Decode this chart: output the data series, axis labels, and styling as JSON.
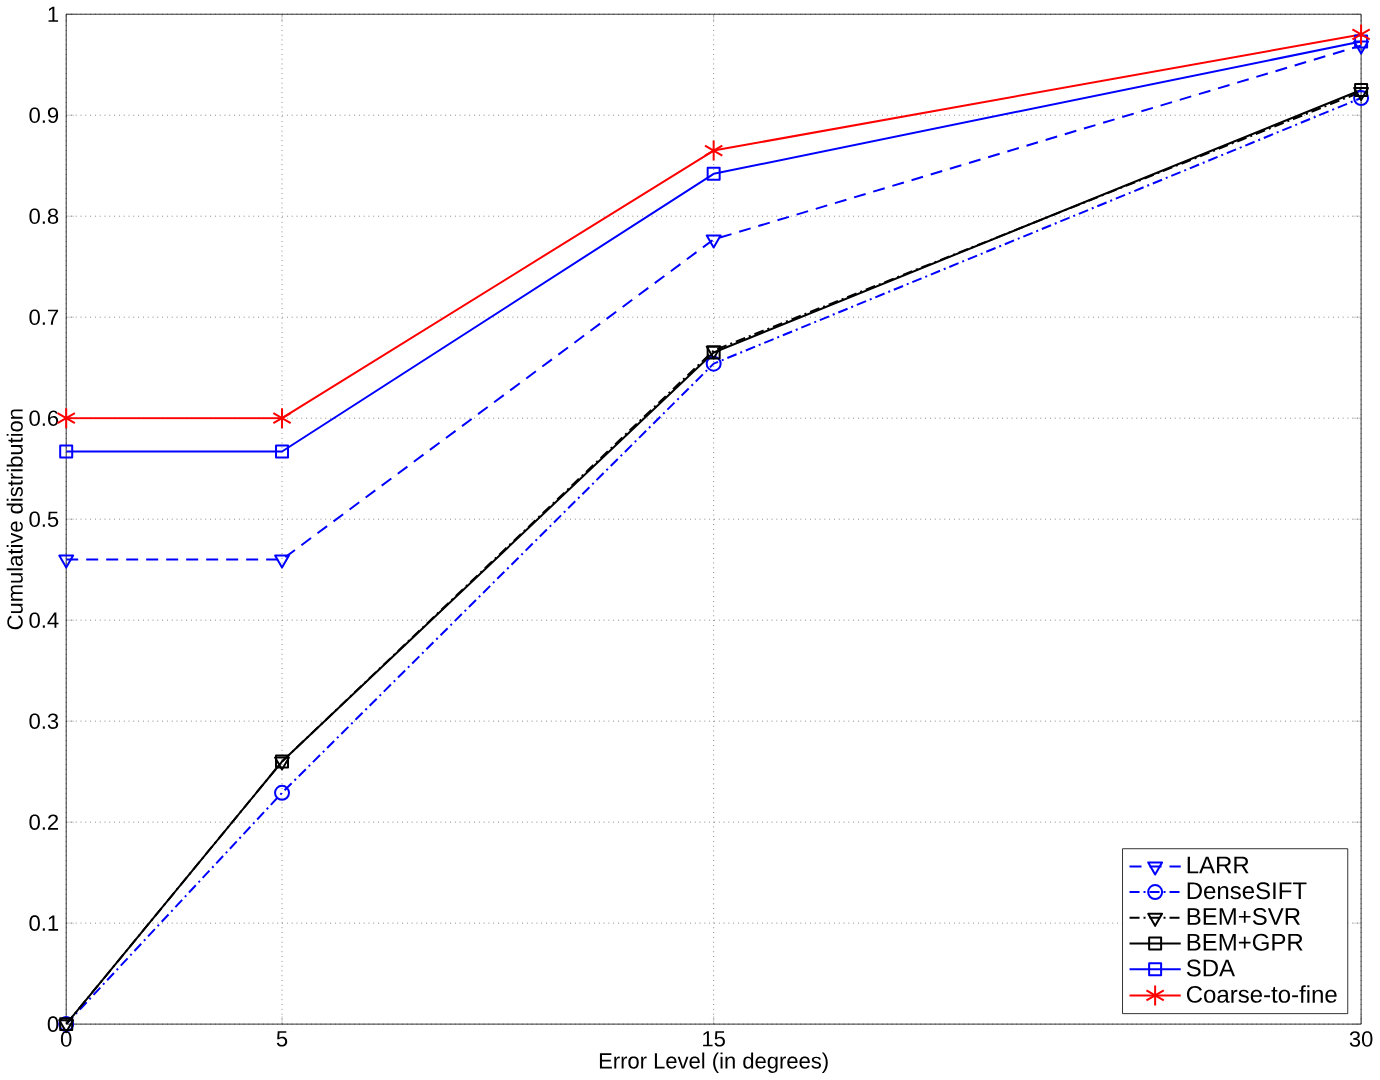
{
  "chart_data": {
    "type": "line",
    "xlabel": "Error Level (in degrees)",
    "ylabel": "Cumulative distribution",
    "x": [
      0,
      5,
      15,
      30
    ],
    "xlim": [
      0,
      30
    ],
    "xticks": [
      0,
      5,
      15,
      30
    ],
    "ylim": [
      0,
      1
    ],
    "yticks": [
      0,
      0.1,
      0.2,
      0.3,
      0.4,
      0.5,
      0.6,
      0.7,
      0.8,
      0.9,
      1
    ],
    "grid": true,
    "legend": "bottom right",
    "series": [
      {
        "name": "LARR",
        "color": "#0000ff",
        "marker": "triangle",
        "line_style": "dashed",
        "values": [
          0.46,
          0.46,
          0.777,
          0.969
        ]
      },
      {
        "name": "DenseSIFT",
        "color": "#0000ff",
        "marker": "circle",
        "line_style": "dashdot",
        "values": [
          0,
          0.229,
          0.654,
          0.917
        ]
      },
      {
        "name": "BEM+SVR",
        "color": "#000000",
        "marker": "triangle",
        "line_style": "dashdot",
        "values": [
          0,
          0.26,
          0.667,
          0.923
        ]
      },
      {
        "name": "BEM+GPR",
        "color": "#000000",
        "marker": "square",
        "line_style": "solid",
        "values": [
          0,
          0.26,
          0.665,
          0.925
        ]
      },
      {
        "name": "SDA",
        "color": "#0000ff",
        "marker": "square",
        "line_style": "solid",
        "values": [
          0.567,
          0.567,
          0.842,
          0.973
        ]
      },
      {
        "name": "Coarse-to-fine",
        "color": "#ff0000",
        "marker": "cross",
        "line_style": "solid",
        "values": [
          0.6,
          0.6,
          0.865,
          0.98
        ]
      }
    ]
  }
}
